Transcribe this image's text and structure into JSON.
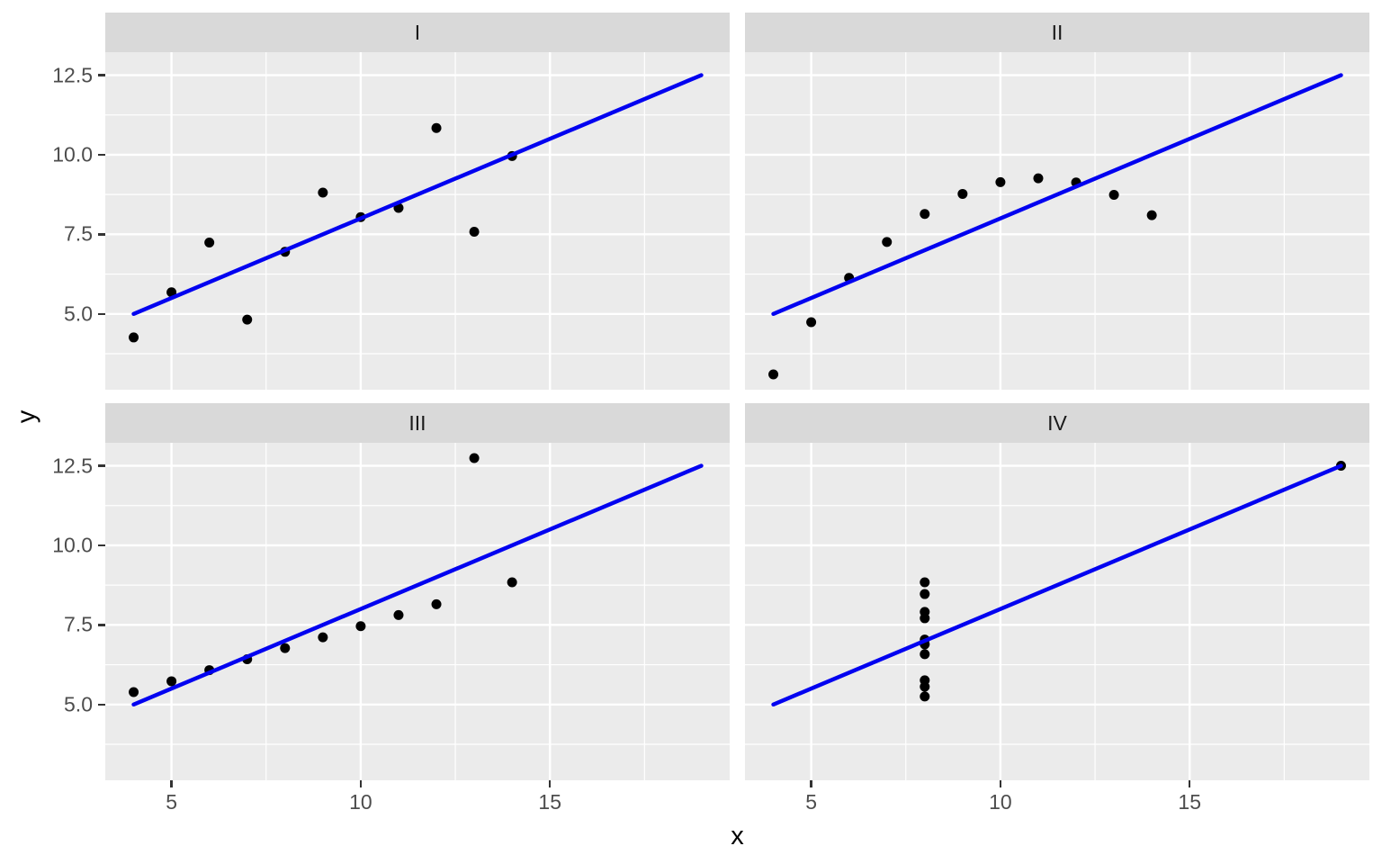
{
  "figure": {
    "x_axis_title": "x",
    "y_axis_title": "y"
  },
  "colors": {
    "panel_background": "#EBEBEB",
    "strip_background": "#D9D9D9",
    "strip_text": "#1A1A1A",
    "gridline": "#FFFFFF",
    "point": "#000000",
    "regression_line": "#0202F0",
    "tick_mark": "#333333",
    "tick_label": "#4D4D4D",
    "axis_title": "#000000"
  },
  "chart_data": {
    "type": "scatter",
    "title": "",
    "xlabel": "x",
    "ylabel": "y",
    "facet_layout": "2x2 grid, shared x and y scales",
    "x_ticks": {
      "values": [
        5,
        10,
        15
      ],
      "labels": [
        "5",
        "10",
        "15"
      ]
    },
    "y_ticks": {
      "values": [
        12.5,
        10.0,
        7.5,
        5.0
      ],
      "labels": [
        "12.5",
        "10.0",
        "7.5",
        "5.0"
      ]
    },
    "x_minor_breaks": [
      7.5,
      12.5,
      17.5
    ],
    "y_minor_breaks": [
      3.75,
      6.25,
      8.75,
      11.25
    ],
    "x_domain": [
      3.25,
      19.75
    ],
    "y_domain": [
      2.618,
      13.222
    ],
    "grid": "major and minor white gridlines on grey panel",
    "legend": "none",
    "facets": [
      {
        "label": "I",
        "points": [
          [
            4,
            4.26
          ],
          [
            5,
            5.68
          ],
          [
            6,
            7.24
          ],
          [
            7,
            4.82
          ],
          [
            8,
            6.95
          ],
          [
            9,
            8.81
          ],
          [
            10,
            8.04
          ],
          [
            11,
            8.33
          ],
          [
            12,
            10.84
          ],
          [
            13,
            7.58
          ],
          [
            14,
            9.96
          ]
        ],
        "line": {
          "x1": 4,
          "y1": 5.0,
          "x2": 19,
          "y2": 12.5
        }
      },
      {
        "label": "II",
        "points": [
          [
            4,
            3.1
          ],
          [
            5,
            4.74
          ],
          [
            6,
            6.13
          ],
          [
            7,
            7.26
          ],
          [
            8,
            8.14
          ],
          [
            9,
            8.77
          ],
          [
            10,
            9.14
          ],
          [
            11,
            9.26
          ],
          [
            12,
            9.13
          ],
          [
            13,
            8.74
          ],
          [
            14,
            8.1
          ]
        ],
        "line": {
          "x1": 4,
          "y1": 5.0,
          "x2": 19,
          "y2": 12.5
        }
      },
      {
        "label": "III",
        "points": [
          [
            4,
            5.39
          ],
          [
            5,
            5.73
          ],
          [
            6,
            6.08
          ],
          [
            7,
            6.42
          ],
          [
            8,
            6.77
          ],
          [
            9,
            7.11
          ],
          [
            10,
            7.46
          ],
          [
            11,
            7.81
          ],
          [
            12,
            8.15
          ],
          [
            13,
            12.74
          ],
          [
            14,
            8.84
          ]
        ],
        "line": {
          "x1": 4,
          "y1": 5.0,
          "x2": 19,
          "y2": 12.5
        }
      },
      {
        "label": "IV",
        "points": [
          [
            8,
            5.25
          ],
          [
            8,
            5.56
          ],
          [
            8,
            5.76
          ],
          [
            8,
            6.58
          ],
          [
            8,
            6.89
          ],
          [
            8,
            7.04
          ],
          [
            8,
            7.71
          ],
          [
            8,
            7.91
          ],
          [
            8,
            8.47
          ],
          [
            8,
            8.84
          ],
          [
            19,
            12.5
          ]
        ],
        "line": {
          "x1": 4,
          "y1": 5.0,
          "x2": 19,
          "y2": 12.5
        }
      }
    ]
  }
}
